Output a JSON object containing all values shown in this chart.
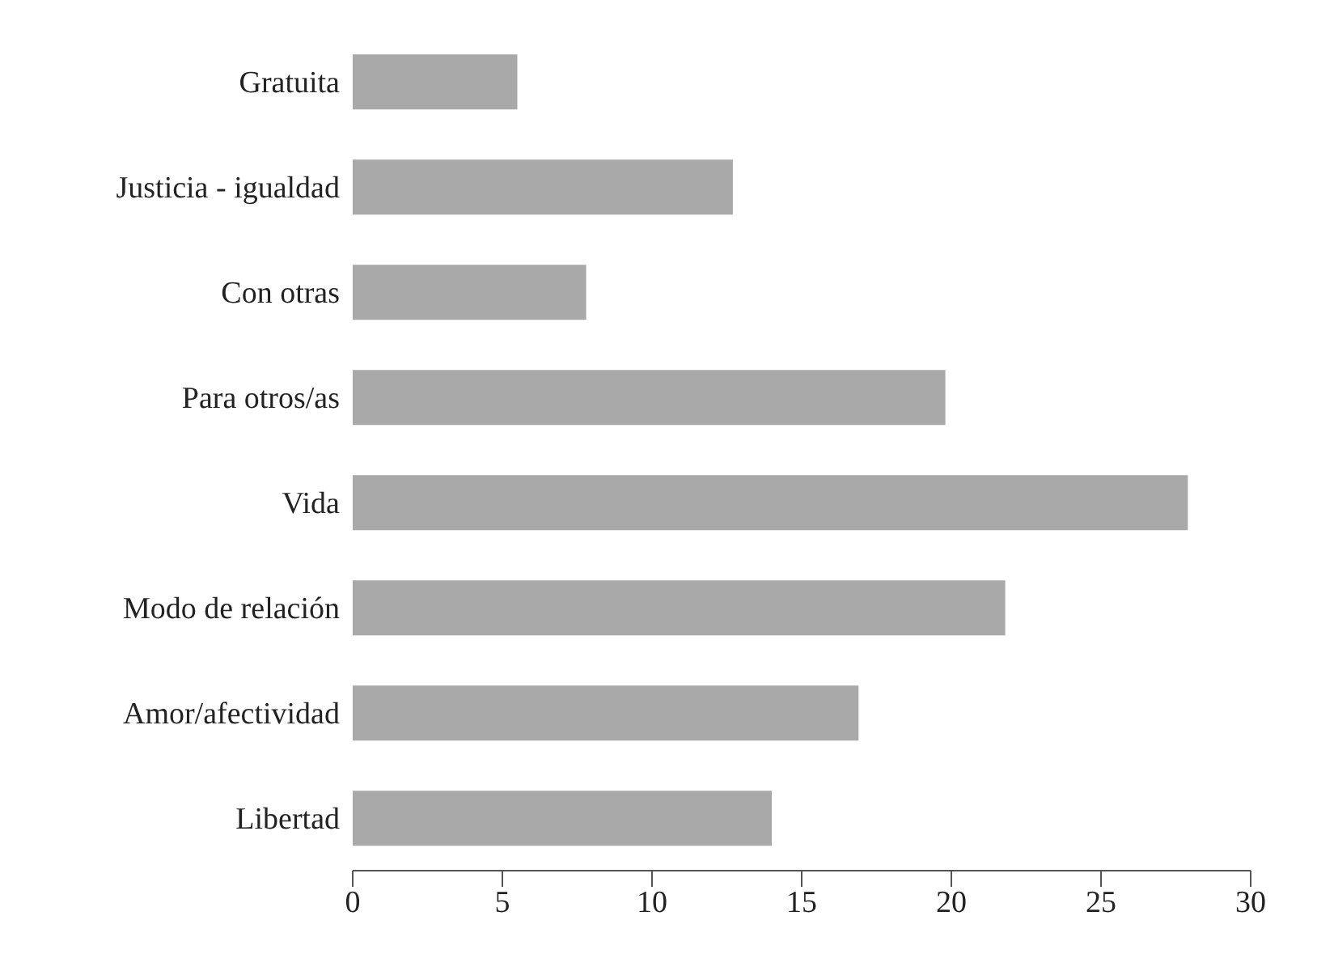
{
  "chart_data": {
    "type": "bar",
    "orientation": "horizontal",
    "categories": [
      "Gratuita",
      "Justicia - igualdad",
      "Con otras",
      "Para otros/as",
      "Vida",
      "Modo de relación",
      "Amor/afectividad",
      "Libertad"
    ],
    "values": [
      5.5,
      12.7,
      7.8,
      19.8,
      27.9,
      21.8,
      16.9,
      14.0
    ],
    "color": "#a9a9a9",
    "xlim": [
      0,
      30
    ],
    "xticks": [
      0,
      5,
      10,
      15,
      20,
      25,
      30
    ],
    "grid": false
  }
}
